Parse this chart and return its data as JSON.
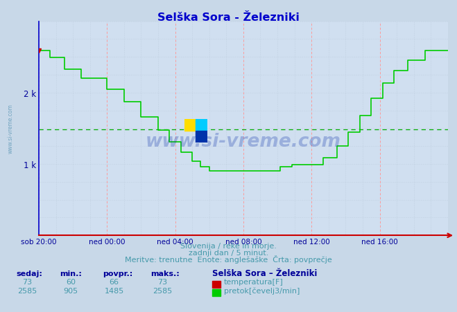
{
  "title": "Selška Sora - Železniki",
  "title_color": "#0000cc",
  "bg_color": "#c8d8e8",
  "plot_bg_color": "#d0dff0",
  "flow_color": "#00cc00",
  "temp_color": "#cc0000",
  "avg_line_color": "#00aa00",
  "axis_color_x": "#cc0000",
  "axis_color_y": "#0000cc",
  "grid_v_color": "#ff9999",
  "grid_h_color": "#b0b8cc",
  "text_color": "#4499aa",
  "table_header_color": "#000099",
  "flow_min": 905,
  "flow_max": 2585,
  "flow_avg": 1485,
  "flow_current": 2585,
  "temp_min": 60,
  "temp_max": 73,
  "temp_avg": 66,
  "temp_current": 73,
  "ymin": 0,
  "ymax": 3000,
  "ytick_vals": [
    1000,
    2000
  ],
  "ytick_labels": [
    "1 k",
    "2 k"
  ],
  "xtick_labels": [
    "sob 20:00",
    "ned 00:00",
    "ned 04:00",
    "ned 08:00",
    "ned 12:00",
    "ned 16:00"
  ],
  "footer_line1": "Slovenija / reke in morje.",
  "footer_line2": "zadnji dan / 5 minut.",
  "footer_line3": "Meritve: trenutne  Enote: anglešaške  Črta: povprečje",
  "watermark": "www.si-vreme.com",
  "side_text": "www.si-vreme.com",
  "logo_yellow": "#ffdd00",
  "logo_cyan": "#00ccff",
  "logo_blue": "#0033aa"
}
